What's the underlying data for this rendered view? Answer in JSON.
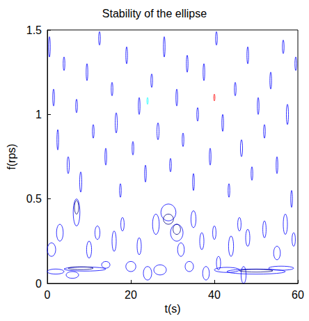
{
  "chart_data": {
    "type": "contour",
    "title": "Stability of the ellipse",
    "x_label": "t(s)",
    "y_label": "f(rps)",
    "xlim": [
      0,
      60
    ],
    "xticks": [
      0,
      20,
      40,
      60
    ],
    "ylim": [
      0,
      1.5
    ],
    "yticks": [
      0,
      0.5,
      1,
      1.5
    ],
    "grid": false,
    "series": [
      {
        "color": "#0000ff",
        "values": [
          [
            2,
            0.07,
            2,
            0.015
          ],
          [
            9,
            0.085,
            5,
            0.012
          ],
          [
            6,
            0.05,
            1.5,
            0.02
          ],
          [
            14,
            0.11,
            1,
            0.02
          ],
          [
            20,
            0.1,
            1.2,
            0.03
          ],
          [
            24,
            0.06,
            1,
            0.04
          ],
          [
            27,
            0.08,
            1.5,
            0.03
          ],
          [
            34,
            0.1,
            1,
            0.03
          ],
          [
            38,
            0.06,
            0.8,
            0.04
          ],
          [
            43,
            0.08,
            3,
            0.015
          ],
          [
            50,
            0.07,
            7,
            0.015
          ],
          [
            56,
            0.09,
            3,
            0.012
          ],
          [
            47,
            0.05,
            0.6,
            0.05
          ],
          [
            41,
            0.12,
            0.5,
            0.04
          ],
          [
            1,
            0.2,
            1,
            0.04
          ],
          [
            3,
            0.3,
            0.8,
            0.05
          ],
          [
            7,
            0.42,
            0.8,
            0.08
          ],
          [
            10,
            0.2,
            0.6,
            0.05
          ],
          [
            12,
            0.3,
            0.6,
            0.04
          ],
          [
            16,
            0.25,
            0.5,
            0.06
          ],
          [
            18,
            0.35,
            0.4,
            0.04
          ],
          [
            22,
            0.22,
            0.5,
            0.05
          ],
          [
            26,
            0.35,
            0.8,
            0.06
          ],
          [
            29,
            0.42,
            1.8,
            0.05
          ],
          [
            31,
            0.3,
            1.5,
            0.05
          ],
          [
            32,
            0.2,
            0.8,
            0.04
          ],
          [
            35,
            0.38,
            0.6,
            0.05
          ],
          [
            37,
            0.25,
            0.5,
            0.05
          ],
          [
            40,
            0.3,
            0.4,
            0.04
          ],
          [
            44,
            0.22,
            0.6,
            0.06
          ],
          [
            46,
            0.35,
            0.4,
            0.04
          ],
          [
            48,
            0.27,
            0.5,
            0.05
          ],
          [
            52,
            0.32,
            0.4,
            0.05
          ],
          [
            55,
            0.18,
            0.8,
            0.04
          ],
          [
            57,
            0.35,
            0.5,
            0.06
          ],
          [
            59,
            0.26,
            0.4,
            0.04
          ],
          [
            0.5,
            1.4,
            0.2,
            0.06
          ],
          [
            1.5,
            1.1,
            0.2,
            0.05
          ],
          [
            2.5,
            0.85,
            0.2,
            0.06
          ],
          [
            4,
            1.3,
            0.2,
            0.04
          ],
          [
            5,
            0.7,
            0.25,
            0.05
          ],
          [
            7,
            1.05,
            0.2,
            0.04
          ],
          [
            8,
            0.6,
            0.25,
            0.06
          ],
          [
            9.5,
            1.25,
            0.2,
            0.05
          ],
          [
            11,
            0.9,
            0.2,
            0.04
          ],
          [
            12.5,
            1.45,
            0.2,
            0.04
          ],
          [
            14,
            0.75,
            0.2,
            0.05
          ],
          [
            15.5,
            1.15,
            0.2,
            0.04
          ],
          [
            16.5,
            0.95,
            0.25,
            0.06
          ],
          [
            17.5,
            0.55,
            0.2,
            0.04
          ],
          [
            19,
            1.35,
            0.2,
            0.05
          ],
          [
            20.5,
            0.8,
            0.2,
            0.04
          ],
          [
            22,
            1.05,
            0.2,
            0.05
          ],
          [
            23.5,
            0.65,
            0.2,
            0.05
          ],
          [
            25,
            1.2,
            0.2,
            0.04
          ],
          [
            26.5,
            0.9,
            0.25,
            0.05
          ],
          [
            28,
            1.4,
            0.2,
            0.06
          ],
          [
            29.5,
            0.7,
            0.2,
            0.04
          ],
          [
            31,
            1.1,
            0.2,
            0.05
          ],
          [
            32.5,
            0.85,
            0.2,
            0.04
          ],
          [
            33.5,
            1.3,
            0.2,
            0.05
          ],
          [
            35,
            0.6,
            0.2,
            0.05
          ],
          [
            36,
            1.0,
            0.2,
            0.04
          ],
          [
            37.5,
            1.25,
            0.2,
            0.05
          ],
          [
            39,
            0.75,
            0.2,
            0.05
          ],
          [
            40.5,
            1.45,
            0.2,
            0.04
          ],
          [
            42,
            0.95,
            0.2,
            0.05
          ],
          [
            43.5,
            0.55,
            0.2,
            0.04
          ],
          [
            45,
            1.15,
            0.2,
            0.04
          ],
          [
            46.5,
            0.8,
            0.25,
            0.05
          ],
          [
            48,
            1.35,
            0.2,
            0.05
          ],
          [
            49,
            0.65,
            0.2,
            0.04
          ],
          [
            50.5,
            1.05,
            0.2,
            0.05
          ],
          [
            52,
            0.9,
            0.2,
            0.04
          ],
          [
            53.5,
            1.2,
            0.2,
            0.05
          ],
          [
            55,
            0.7,
            0.2,
            0.05
          ],
          [
            56.5,
            1.4,
            0.2,
            0.04
          ],
          [
            57.5,
            1.0,
            0.25,
            0.06
          ],
          [
            58.5,
            0.5,
            0.2,
            0.05
          ],
          [
            59.5,
            1.3,
            0.2,
            0.04
          ]
        ]
      },
      {
        "color": "#000080",
        "values": [
          [
            8,
            0.09,
            3,
            0.008
          ],
          [
            29,
            0.38,
            1.2,
            0.03
          ],
          [
            50,
            0.075,
            4,
            0.008
          ],
          [
            7,
            0.45,
            0.5,
            0.04
          ],
          [
            31,
            0.32,
            0.9,
            0.03
          ]
        ]
      },
      {
        "color": "#00ffff",
        "values": [
          [
            24,
            1.08,
            0.15,
            0.02
          ]
        ]
      },
      {
        "color": "#ff0000",
        "values": [
          [
            40,
            1.1,
            0.15,
            0.02
          ]
        ]
      }
    ]
  }
}
